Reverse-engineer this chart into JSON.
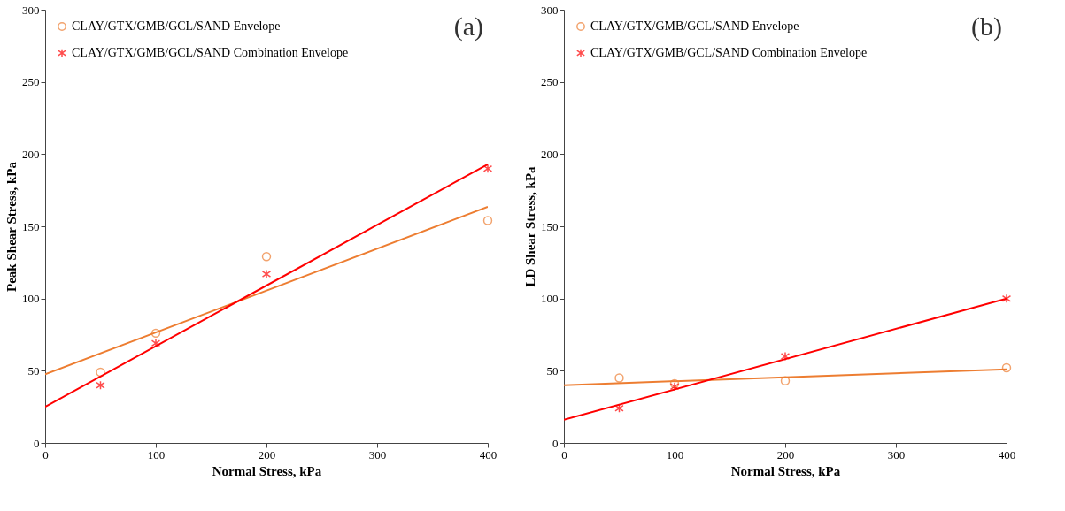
{
  "chart_data": [
    {
      "type": "scatter",
      "xlabel": "Normal Stress, kPa",
      "ylabel": "Peak Shear Stress, kPa",
      "xlim": [
        0,
        400
      ],
      "ylim": [
        0,
        300
      ],
      "xticks": [
        0,
        100,
        200,
        300,
        400
      ],
      "yticks": [
        0,
        50,
        100,
        150,
        200,
        250,
        300
      ],
      "grid": false,
      "legend": "top left",
      "annotations": [
        "(a)"
      ],
      "series": [
        {
          "name": "CLAY/GTX/GMB/GCL/SAND Envelope",
          "color": "#ed7d31",
          "marker": "circle",
          "x": [
            50,
            100,
            200,
            400
          ],
          "values": [
            49,
            76,
            129,
            154
          ]
        },
        {
          "name": "CLAY/GTX/GMB/GCL/SAND Combination Envelope",
          "color": "#ff0000",
          "marker": "cross",
          "x": [
            50,
            100,
            200,
            400
          ],
          "values": [
            40,
            69,
            117,
            190
          ]
        },
        {
          "type": "line",
          "color": "#ed7d31",
          "x": [
            0,
            400
          ],
          "values": [
            47.5,
            163.5
          ]
        },
        {
          "type": "line",
          "color": "#ff0000",
          "x": [
            0,
            400
          ],
          "values": [
            25,
            193
          ]
        }
      ]
    },
    {
      "type": "scatter",
      "xlabel": "Normal Stress, kPa",
      "ylabel": "LD Shear Stress, kPa",
      "xlim": [
        0,
        400
      ],
      "ylim": [
        0,
        300
      ],
      "xticks": [
        0,
        100,
        200,
        300,
        400
      ],
      "yticks": [
        0,
        50,
        100,
        150,
        200,
        250,
        300
      ],
      "grid": false,
      "legend": "top left",
      "annotations": [
        "(b)"
      ],
      "series": [
        {
          "name": "CLAY/GTX/GMB/GCL/SAND Envelope",
          "color": "#ed7d31",
          "marker": "circle",
          "x": [
            50,
            100,
            200,
            400
          ],
          "values": [
            45,
            41,
            43,
            52
          ]
        },
        {
          "name": "CLAY/GTX/GMB/GCL/SAND Combination Envelope",
          "color": "#ff0000",
          "marker": "cross",
          "x": [
            50,
            100,
            200,
            400
          ],
          "values": [
            24,
            39,
            60,
            100
          ]
        },
        {
          "type": "line",
          "color": "#ed7d31",
          "x": [
            0,
            400
          ],
          "values": [
            40,
            51
          ]
        },
        {
          "type": "line",
          "color": "#ff0000",
          "x": [
            0,
            400
          ],
          "values": [
            16,
            100
          ]
        }
      ]
    }
  ]
}
